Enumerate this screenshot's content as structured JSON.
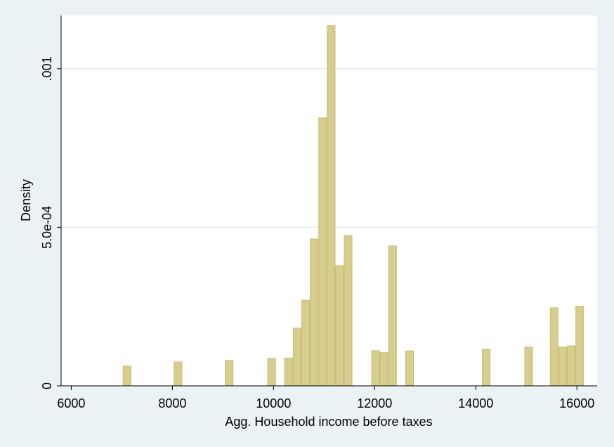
{
  "chart_data": {
    "type": "bar",
    "title": "",
    "xlabel": "Agg. Household income before taxes",
    "ylabel": "Density",
    "xlim": [
      5800,
      16400
    ],
    "ylim": [
      0,
      0.001168
    ],
    "x_ticks": [
      6000,
      8000,
      10000,
      12000,
      14000,
      16000
    ],
    "x_tick_labels": [
      "6000",
      "8000",
      "10000",
      "12000",
      "14000",
      "16000"
    ],
    "y_ticks": [
      0,
      0.0005,
      0.001
    ],
    "y_tick_labels": [
      "0",
      "5.0e-04",
      ".001"
    ],
    "grid": true,
    "bin_width": 168,
    "bars": [
      {
        "x": 7103,
        "value": 6.22e-05
      },
      {
        "x": 8112,
        "value": 7.55e-05
      },
      {
        "x": 9122,
        "value": 8e-05
      },
      {
        "x": 9963,
        "value": 8.66e-05
      },
      {
        "x": 10299,
        "value": 8.77e-05
      },
      {
        "x": 10467,
        "value": 0.000182
      },
      {
        "x": 10635,
        "value": 0.00027
      },
      {
        "x": 10803,
        "value": 0.000463
      },
      {
        "x": 10972,
        "value": 0.000845
      },
      {
        "x": 11140,
        "value": 0.001136
      },
      {
        "x": 11308,
        "value": 0.000379
      },
      {
        "x": 11476,
        "value": 0.000474
      },
      {
        "x": 12018,
        "value": 0.000111
      },
      {
        "x": 12186,
        "value": 0.000105
      },
      {
        "x": 12354,
        "value": 0.000441
      },
      {
        "x": 12690,
        "value": 0.00011
      },
      {
        "x": 14205,
        "value": 0.000115
      },
      {
        "x": 15046,
        "value": 0.000122
      },
      {
        "x": 15550,
        "value": 0.000246
      },
      {
        "x": 15718,
        "value": 0.000122
      },
      {
        "x": 15886,
        "value": 0.000126
      },
      {
        "x": 16055,
        "value": 0.000251
      }
    ],
    "colors": {
      "bar_fill": "#d6cd8e",
      "bar_stroke": "#c7bc73",
      "plot_bg": "#ffffff",
      "outer_bg": "#eaf2f3",
      "grid": "#e3ecee"
    }
  }
}
